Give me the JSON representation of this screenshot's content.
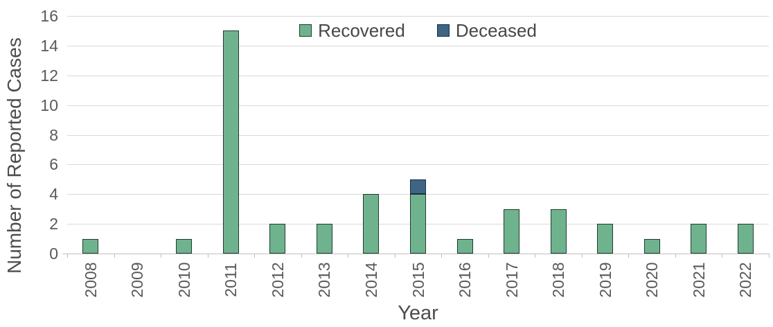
{
  "chart_data": {
    "type": "bar",
    "stacked": true,
    "title": "",
    "xlabel": "Year",
    "ylabel": "Number of Reported Cases",
    "categories": [
      "2008",
      "2009",
      "2010",
      "2011",
      "2012",
      "2013",
      "2014",
      "2015",
      "2016",
      "2017",
      "2018",
      "2019",
      "2020",
      "2021",
      "2022"
    ],
    "series": [
      {
        "name": "Recovered",
        "fill": "#6FB38E",
        "border": "#1E3C2C",
        "values": [
          1,
          0,
          1,
          15,
          2,
          2,
          4,
          4,
          1,
          3,
          3,
          2,
          1,
          2,
          2
        ]
      },
      {
        "name": "Deceased",
        "fill": "#3E6585",
        "border": "#152C45",
        "values": [
          0,
          0,
          0,
          0,
          0,
          0,
          0,
          1,
          0,
          0,
          0,
          0,
          0,
          0,
          0
        ]
      }
    ],
    "totals": [
      1,
      0,
      1,
      15,
      2,
      2,
      4,
      5,
      1,
      3,
      3,
      2,
      1,
      2,
      2
    ],
    "ylim": [
      0,
      16
    ],
    "ytick_step": 2,
    "ytick_labels": [
      "0",
      "2",
      "4",
      "6",
      "8",
      "10",
      "12",
      "14",
      "16"
    ],
    "grid": true,
    "legend_position": "top-center-inside"
  },
  "style": {
    "gridline_color": "#D9D9D9",
    "axis_color": "#BFBFBF",
    "tick_label_color": "#595959",
    "axis_title_color": "#4D4D4D",
    "recovered_color": "#6FB38E",
    "deceased_color": "#3E6585"
  }
}
